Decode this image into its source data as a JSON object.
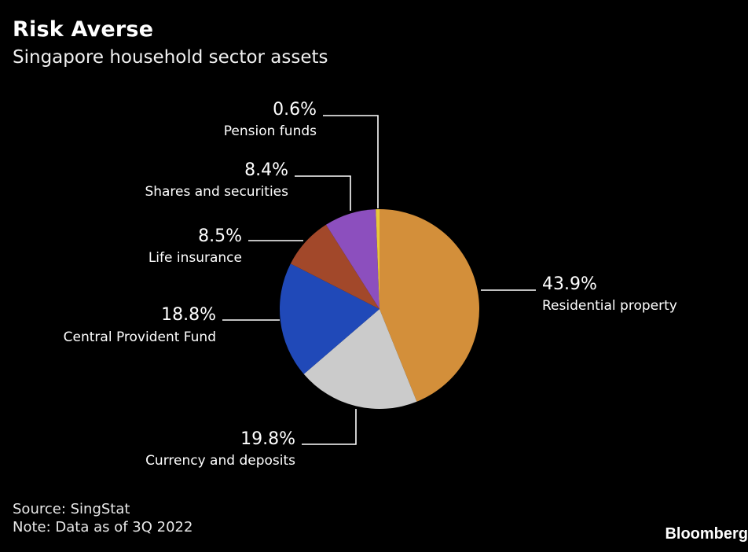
{
  "header": {
    "title": "Risk Averse",
    "subtitle": "Singapore household sector assets"
  },
  "footer": {
    "source": "Source: SingStat",
    "note": "Note: Data as of 3Q 2022",
    "brand": "Bloomberg"
  },
  "chart_data": {
    "type": "pie",
    "title": "Risk Averse",
    "subtitle": "Singapore household sector assets",
    "start": "12 o'clock, clockwise",
    "slices": [
      {
        "label": "Residential property",
        "value": 43.9,
        "value_label": "43.9%",
        "color": "#D38F3A"
      },
      {
        "label": "Currency and deposits",
        "value": 19.8,
        "value_label": "19.8%",
        "color": "#CBCBCB"
      },
      {
        "label": "Central Provident Fund",
        "value": 18.8,
        "value_label": "18.8%",
        "color": "#2049B8"
      },
      {
        "label": "Life insurance",
        "value": 8.5,
        "value_label": "8.5%",
        "color": "#A2482A"
      },
      {
        "label": "Shares and securities",
        "value": 8.4,
        "value_label": "8.4%",
        "color": "#8C4FBE"
      },
      {
        "label": "Pension funds",
        "value": 0.6,
        "value_label": "0.6%",
        "color": "#E8C83A"
      }
    ],
    "leader_line_color": "#ffffff"
  }
}
